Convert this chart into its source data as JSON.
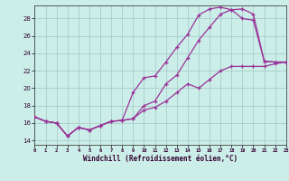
{
  "xlabel": "Windchill (Refroidissement éolien,°C)",
  "bg_color": "#cceee8",
  "grid_color": "#aacccc",
  "line_color": "#993399",
  "xlim": [
    0,
    23
  ],
  "ylim": [
    13.5,
    29.5
  ],
  "yticks": [
    14,
    16,
    18,
    20,
    22,
    24,
    26,
    28
  ],
  "xticks": [
    0,
    1,
    2,
    3,
    4,
    5,
    6,
    7,
    8,
    9,
    10,
    11,
    12,
    13,
    14,
    15,
    16,
    17,
    18,
    19,
    20,
    21,
    22,
    23
  ],
  "line1_x": [
    0,
    1,
    2,
    3,
    4,
    5,
    6,
    7,
    8,
    9,
    10,
    11,
    12,
    13,
    14,
    15,
    16,
    17,
    18,
    19,
    20,
    21,
    22,
    23
  ],
  "line1_y": [
    16.7,
    16.2,
    16.0,
    14.5,
    15.5,
    15.2,
    15.7,
    16.2,
    16.3,
    19.5,
    21.2,
    21.4,
    23.0,
    24.7,
    26.2,
    28.4,
    29.1,
    29.3,
    29.0,
    29.1,
    28.5,
    23.1,
    23.0,
    23.0
  ],
  "line2_x": [
    0,
    1,
    2,
    3,
    4,
    5,
    6,
    7,
    8,
    9,
    10,
    11,
    12,
    13,
    14,
    15,
    16,
    17,
    18,
    19,
    20,
    21,
    22,
    23
  ],
  "line2_y": [
    16.7,
    16.2,
    16.0,
    14.5,
    15.5,
    15.2,
    15.7,
    16.2,
    16.3,
    16.5,
    18.0,
    18.5,
    20.5,
    21.5,
    23.5,
    25.5,
    27.0,
    28.5,
    29.0,
    28.0,
    27.8,
    23.1,
    23.0,
    23.0
  ],
  "line3_x": [
    0,
    1,
    2,
    3,
    4,
    5,
    6,
    7,
    8,
    9,
    10,
    11,
    12,
    13,
    14,
    15,
    16,
    17,
    18,
    19,
    20,
    21,
    22,
    23
  ],
  "line3_y": [
    16.7,
    16.2,
    16.0,
    14.5,
    15.5,
    15.2,
    15.7,
    16.2,
    16.3,
    16.5,
    17.5,
    17.8,
    18.5,
    19.5,
    20.5,
    20.0,
    21.0,
    22.0,
    22.5,
    22.5,
    22.5,
    22.5,
    22.8,
    23.0
  ]
}
